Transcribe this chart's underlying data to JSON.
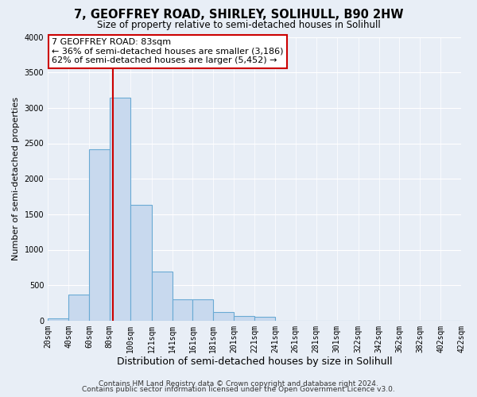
{
  "title": "7, GEOFFREY ROAD, SHIRLEY, SOLIHULL, B90 2HW",
  "subtitle": "Size of property relative to semi-detached houses in Solihull",
  "xlabel": "Distribution of semi-detached houses by size in Solihull",
  "ylabel": "Number of semi-detached properties",
  "bar_color": "#c8d9ee",
  "bar_edge_color": "#6aaad4",
  "background_color": "#e8eef6",
  "axes_background_color": "#e8eef6",
  "grid_color": "#ffffff",
  "bin_edges": [
    20,
    40,
    60,
    80,
    100,
    121,
    141,
    161,
    181,
    201,
    221,
    241,
    261,
    281,
    301,
    322,
    342,
    362,
    382,
    402,
    422
  ],
  "counts": [
    30,
    370,
    2420,
    3140,
    1630,
    690,
    300,
    300,
    125,
    60,
    55,
    0,
    0,
    0,
    0,
    0,
    0,
    0,
    0,
    0
  ],
  "property_size": 83,
  "vline_color": "#cc0000",
  "annotation_text_line1": "7 GEOFFREY ROAD: 83sqm",
  "annotation_text_line2": "← 36% of semi-detached houses are smaller (3,186)",
  "annotation_text_line3": "62% of semi-detached houses are larger (5,452) →",
  "annotation_box_color": "#ffffff",
  "annotation_box_edge_color": "#cc0000",
  "ylim": [
    0,
    4000
  ],
  "yticks": [
    0,
    500,
    1000,
    1500,
    2000,
    2500,
    3000,
    3500,
    4000
  ],
  "tick_labels": [
    "20sqm",
    "40sqm",
    "60sqm",
    "80sqm",
    "100sqm",
    "121sqm",
    "141sqm",
    "161sqm",
    "181sqm",
    "201sqm",
    "221sqm",
    "241sqm",
    "261sqm",
    "281sqm",
    "301sqm",
    "322sqm",
    "342sqm",
    "362sqm",
    "382sqm",
    "402sqm",
    "422sqm"
  ],
  "footer_line1": "Contains HM Land Registry data © Crown copyright and database right 2024.",
  "footer_line2": "Contains public sector information licensed under the Open Government Licence v3.0.",
  "title_fontsize": 10.5,
  "subtitle_fontsize": 8.5,
  "xlabel_fontsize": 9,
  "ylabel_fontsize": 8,
  "tick_fontsize": 7,
  "annotation_fontsize": 8,
  "footer_fontsize": 6.5
}
